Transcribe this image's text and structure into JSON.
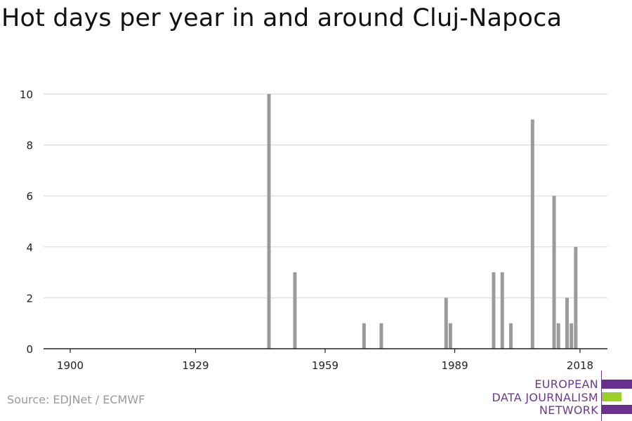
{
  "title": "Hot days per year in and around Cluj-Napoca",
  "source": "Source: EDJNet / ECMWF",
  "logo": {
    "line1": "EUROPEAN",
    "line2": "DATA JOURNALISM",
    "line3": "NETWORK",
    "purple": "#6b2f8f",
    "green": "#9ccf2a"
  },
  "colors": {
    "bar": "#9b9b9b",
    "grid": "#dcdcdc",
    "axis": "#222222"
  },
  "chart_data": {
    "type": "bar",
    "title": "Hot days per year in and around Cluj-Napoca",
    "xlabel": "",
    "ylabel": "",
    "xlim": [
      1900,
      2018
    ],
    "ylim": [
      0,
      10
    ],
    "xticks": [
      1900,
      1929,
      1959,
      1989,
      2018
    ],
    "yticks": [
      0,
      2,
      4,
      6,
      8,
      10
    ],
    "grid": true,
    "x": [
      1946,
      1952,
      1968,
      1972,
      1987,
      1988,
      1998,
      2000,
      2002,
      2007,
      2012,
      2013,
      2015,
      2016,
      2017
    ],
    "values": [
      10,
      3,
      1,
      1,
      2,
      1,
      3,
      3,
      1,
      9,
      6,
      1,
      2,
      1,
      4
    ]
  }
}
